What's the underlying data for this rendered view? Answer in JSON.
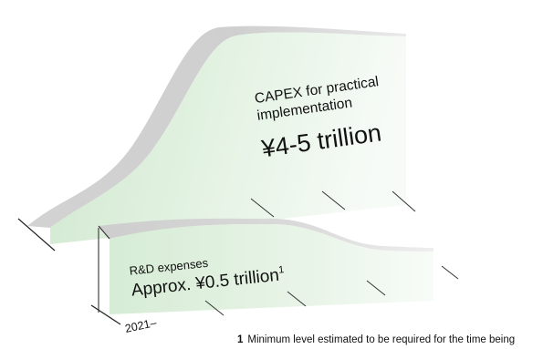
{
  "chart_data": {
    "type": "area",
    "series": [
      {
        "name": "CAPEX for practical implementation",
        "value_label": "¥4-5 trillion",
        "value_min": 4,
        "value_max": 5,
        "unit": "trillion yen"
      },
      {
        "name": "R&D expenses",
        "value_label": "Approx. ¥0.5 trillion",
        "footnote_marker": "1",
        "value": 0.5,
        "unit": "trillion yen"
      }
    ],
    "x_start_label": "2021–",
    "footnote": {
      "marker": "1",
      "text": "Minimum level estimated to be required for the time being"
    }
  },
  "colors": {
    "ridge": "#c9c9c9",
    "ridge_light": "#e4e4e4",
    "face_top": "#cfe8cf",
    "face_bottom": "#f5fbf5",
    "axis": "#222222"
  }
}
